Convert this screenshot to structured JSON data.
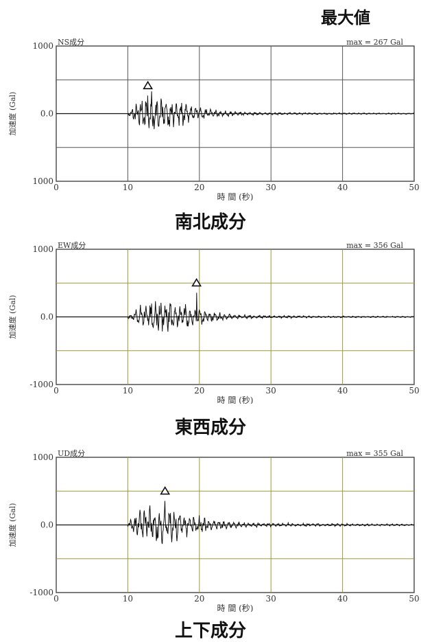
{
  "legend": {
    "max_label": "最大値",
    "marker": "△"
  },
  "chart_data": [
    {
      "type": "line",
      "panel_label": "NS成分",
      "max_text": "max = 267 Gal",
      "caption": "南北成分",
      "xlabel": "時 間 (秒)",
      "ylabel": "加速度 (Gal)",
      "xlim": [
        0,
        50
      ],
      "ylim": [
        -1000,
        1000
      ],
      "xticks": [
        "0",
        "10",
        "20",
        "30",
        "40",
        "50"
      ],
      "yticks": [
        "1000",
        "0.0",
        "1000"
      ],
      "grid": true,
      "grid_color": "#555555",
      "onset": 10,
      "peak": {
        "t": 12.8,
        "value": 267
      },
      "envelope": [
        [
          10,
          20
        ],
        [
          11,
          120
        ],
        [
          12,
          220
        ],
        [
          13,
          260
        ],
        [
          14,
          240
        ],
        [
          15,
          220
        ],
        [
          16,
          200
        ],
        [
          18,
          150
        ],
        [
          20,
          90
        ],
        [
          22,
          50
        ],
        [
          25,
          25
        ],
        [
          30,
          15
        ],
        [
          40,
          10
        ],
        [
          50,
          8
        ]
      ]
    },
    {
      "type": "line",
      "panel_label": "EW成分",
      "max_text": "max = 356 Gal",
      "caption": "東西成分",
      "xlabel": "時 間 (秒)",
      "ylabel": "加速度 (Gal)",
      "xlim": [
        0,
        50
      ],
      "ylim": [
        -1000,
        1000
      ],
      "xticks": [
        "0",
        "10",
        "20",
        "30",
        "40",
        "50"
      ],
      "yticks": [
        "1000",
        "0.0",
        "-1000"
      ],
      "grid": true,
      "grid_color": "#9a9a3a",
      "onset": 10,
      "peak": {
        "t": 19.6,
        "value": 356
      },
      "envelope": [
        [
          10,
          20
        ],
        [
          11,
          80
        ],
        [
          12,
          200
        ],
        [
          13,
          240
        ],
        [
          14,
          260
        ],
        [
          15,
          250
        ],
        [
          16,
          220
        ],
        [
          17,
          200
        ],
        [
          18,
          180
        ],
        [
          19,
          150
        ],
        [
          20,
          110
        ],
        [
          22,
          60
        ],
        [
          25,
          30
        ],
        [
          30,
          18
        ],
        [
          40,
          12
        ],
        [
          50,
          8
        ]
      ]
    },
    {
      "type": "line",
      "panel_label": "UD成分",
      "max_text": "max = 355 Gal",
      "caption": "上下成分",
      "xlabel": "時 間 (秒)",
      "ylabel": "加速度 (Gal)",
      "xlim": [
        0,
        50
      ],
      "ylim": [
        -1000,
        1000
      ],
      "xticks": [
        "0",
        "10",
        "20",
        "30",
        "40",
        "50"
      ],
      "yticks": [
        "1000",
        "0.0",
        "-1000"
      ],
      "grid": true,
      "grid_color": "#9a9a3a",
      "onset": 10,
      "peak": {
        "t": 15.2,
        "value": 355
      },
      "envelope": [
        [
          10,
          30
        ],
        [
          11,
          150
        ],
        [
          12,
          200
        ],
        [
          13,
          220
        ],
        [
          14,
          240
        ],
        [
          15,
          260
        ],
        [
          16,
          230
        ],
        [
          17,
          200
        ],
        [
          18,
          170
        ],
        [
          20,
          120
        ],
        [
          22,
          70
        ],
        [
          25,
          40
        ],
        [
          30,
          25
        ],
        [
          40,
          18
        ],
        [
          50,
          12
        ]
      ]
    }
  ]
}
